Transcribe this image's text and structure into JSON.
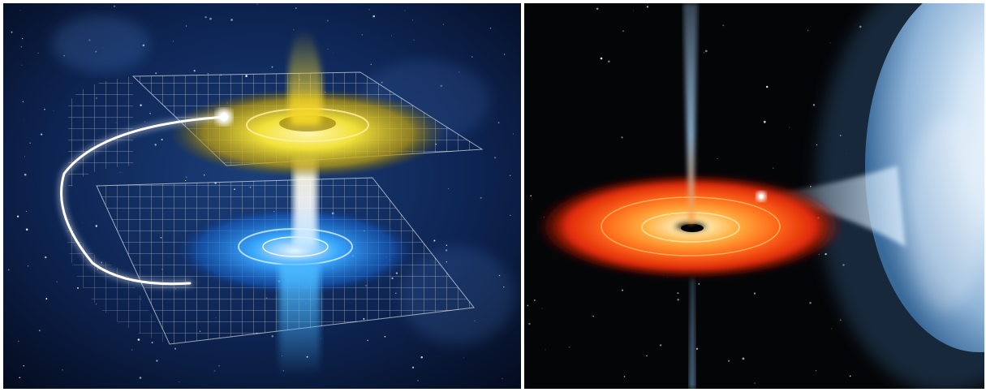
{
  "image": {
    "panels": [
      {
        "subject": "wormhole-illustration",
        "sheet_colors": [
          "#ffffff",
          "#f2e23a",
          "#3aa8ff"
        ]
      },
      {
        "subject": "black-hole-accretion-illustration",
        "colors": [
          "#ff3a10",
          "#ffb040",
          "#bcd8f0"
        ]
      }
    ]
  }
}
